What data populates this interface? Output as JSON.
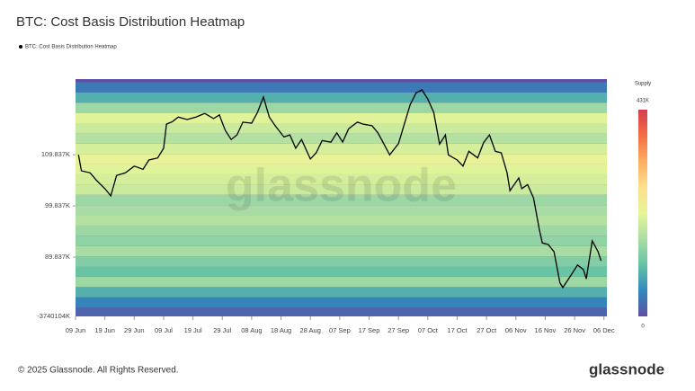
{
  "chart_data": {
    "type": "heatmap-line",
    "title": "BTC: Cost Basis Distribution Heatmap",
    "x": [
      1,
      2,
      5,
      7,
      10,
      12,
      14,
      17,
      20,
      23,
      25,
      28,
      30,
      31,
      33,
      35,
      38,
      41,
      44,
      47,
      49,
      51,
      53,
      55,
      57,
      60,
      62,
      64,
      66,
      68,
      71,
      73,
      75,
      77,
      80,
      82,
      84,
      87,
      89,
      91,
      93,
      96,
      98,
      101,
      103,
      105,
      107,
      110,
      112,
      114,
      116,
      118,
      120,
      122,
      124,
      126,
      127,
      130,
      132,
      134,
      137,
      139,
      141,
      143,
      145,
      147,
      148,
      151,
      152,
      154,
      156,
      158,
      159,
      161,
      163,
      165,
      166,
      169,
      171,
      173,
      174,
      176,
      178,
      179
    ],
    "series": [
      {
        "name": "BTC: Cost Basis Distribution Heatmap",
        "color": "#000000",
        "values": [
          109800,
          106700,
          106300,
          104900,
          103200,
          101800,
          105800,
          106300,
          107600,
          107000,
          108800,
          109200,
          111100,
          115800,
          116300,
          117200,
          116700,
          117200,
          117900,
          116900,
          117600,
          114600,
          112800,
          113700,
          116200,
          116000,
          118100,
          121100,
          117200,
          115500,
          113300,
          113700,
          111100,
          112800,
          109000,
          110200,
          112600,
          112300,
          114100,
          112300,
          114900,
          116200,
          115800,
          115500,
          114100,
          112000,
          109800,
          112000,
          115800,
          119600,
          121900,
          122500,
          120700,
          118100,
          111900,
          113700,
          109800,
          108800,
          107600,
          110500,
          109200,
          112200,
          113700,
          110500,
          110200,
          106300,
          102800,
          105300,
          103200,
          104000,
          101400,
          95200,
          92600,
          92300,
          90900,
          84800,
          83900,
          86500,
          88300,
          87400,
          85600,
          93000,
          90900,
          89100
        ]
      }
    ],
    "xlim": [
      0,
      181
    ],
    "xticks": [
      {
        "value": 0,
        "label": "09 Jun"
      },
      {
        "value": 10,
        "label": "19 Jun"
      },
      {
        "value": 20,
        "label": "29 Jun"
      },
      {
        "value": 30,
        "label": "09 Jul"
      },
      {
        "value": 40,
        "label": "19 Jul"
      },
      {
        "value": 50,
        "label": "29 Jul"
      },
      {
        "value": 60,
        "label": "08 Aug"
      },
      {
        "value": 70,
        "label": "18 Aug"
      },
      {
        "value": 80,
        "label": "28 Aug"
      },
      {
        "value": 90,
        "label": "07 Sep"
      },
      {
        "value": 100,
        "label": "17 Sep"
      },
      {
        "value": 110,
        "label": "27 Sep"
      },
      {
        "value": 120,
        "label": "07 Oct"
      },
      {
        "value": 130,
        "label": "17 Oct"
      },
      {
        "value": 140,
        "label": "27 Oct"
      },
      {
        "value": 150,
        "label": "06 Nov"
      },
      {
        "value": 160,
        "label": "16 Nov"
      },
      {
        "value": 170,
        "label": "26 Nov"
      },
      {
        "value": 180,
        "label": "06 Dec"
      }
    ],
    "ylim": [
      78260,
      124600
    ],
    "yticks": [
      {
        "value": 109837,
        "label": "109.837K"
      },
      {
        "value": 99837,
        "label": "99.837K"
      },
      {
        "value": 89837,
        "label": "89.837K"
      }
    ],
    "y_min_label": "-3740104K",
    "supply_bins": [
      78000,
      80000,
      82000,
      84000,
      86000,
      88000,
      90000,
      92000,
      94000,
      96000,
      98000,
      100000,
      102000,
      104000,
      106000,
      108000,
      110000,
      112000,
      114000,
      116000,
      118000,
      120000,
      122000,
      124000
    ],
    "supply": [
      20000,
      50000,
      90000,
      150000,
      110000,
      130000,
      160000,
      140000,
      150000,
      170000,
      160000,
      150000,
      190000,
      200000,
      210000,
      220000,
      200000,
      170000,
      190000,
      210000,
      150000,
      90000,
      40000
    ],
    "colorbar": {
      "title": "Supply",
      "lim": [
        0,
        431000
      ],
      "ticks": [
        {
          "value": 431000,
          "label": "431K"
        },
        0
      ]
    },
    "colormap": [
      "#5e4fa2",
      "#3288bd",
      "#66c2a5",
      "#abdda4",
      "#e6f598",
      "#fee08b",
      "#fdae61",
      "#f46d43",
      "#d53e4f"
    ],
    "watermark": "glassnode",
    "footer": "© 2025 Glassnode. All Rights Reserved.",
    "logo": "glassnode"
  }
}
